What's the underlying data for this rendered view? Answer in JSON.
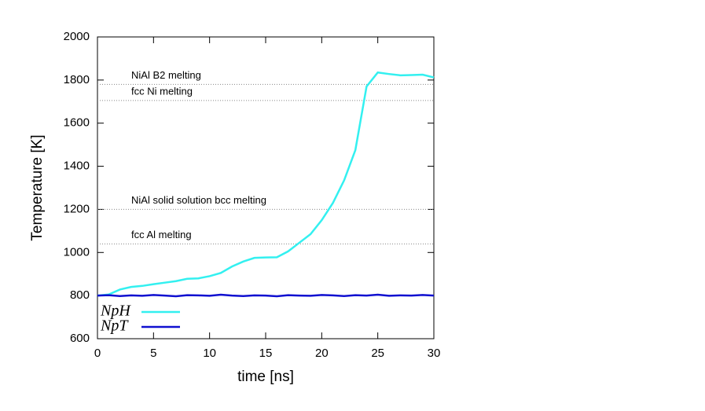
{
  "chart_data": {
    "type": "line",
    "x_label": "time [ns]",
    "y_label": "Temperature [K]",
    "x": [
      0,
      1,
      2,
      3,
      4,
      5,
      6,
      7,
      8,
      9,
      10,
      11,
      12,
      13,
      14,
      15,
      16,
      17,
      18,
      19,
      20,
      21,
      22,
      23,
      24,
      25,
      26,
      27,
      28,
      29,
      30
    ],
    "series": [
      {
        "name": "NpH",
        "color": "#33f0f0",
        "values": [
          800,
          805,
          828,
          840,
          845,
          853,
          860,
          867,
          878,
          880,
          890,
          905,
          935,
          958,
          975,
          977,
          978,
          1005,
          1045,
          1085,
          1150,
          1230,
          1335,
          1475,
          1770,
          1835,
          1828,
          1822,
          1823,
          1825,
          1812
        ]
      },
      {
        "name": "NpT",
        "color": "#1010d0",
        "values": [
          800,
          802,
          798,
          801,
          799,
          803,
          800,
          797,
          802,
          801,
          799,
          804,
          800,
          798,
          801,
          800,
          797,
          802,
          800,
          799,
          803,
          801,
          798,
          802,
          800,
          804,
          799,
          801,
          800,
          803,
          800
        ]
      }
    ],
    "annotations": [
      {
        "text": "NiAl B2 melting",
        "value": 1780
      },
      {
        "text": "fcc Ni melting",
        "value": 1705
      },
      {
        "text": "NiAl solid solution bcc melting",
        "value": 1200
      },
      {
        "text": "fcc Al melting",
        "value": 1040
      }
    ],
    "xlim": [
      0,
      30
    ],
    "xticks": [
      0,
      5,
      10,
      15,
      20,
      25,
      30
    ],
    "ylim": [
      600,
      2000
    ],
    "yticks": [
      600,
      800,
      1000,
      1200,
      1400,
      1600,
      1800,
      2000
    ],
    "legend": "lower left"
  }
}
